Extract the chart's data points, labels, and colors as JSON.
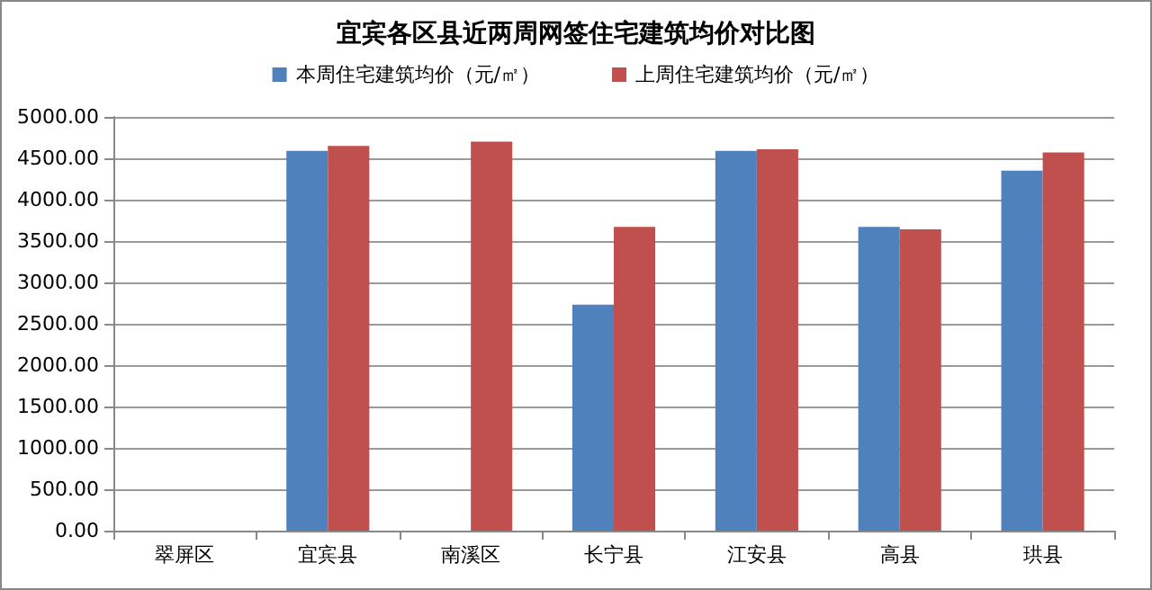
{
  "chart_data": {
    "type": "bar",
    "title": "宜宾各区县近两周网签住宅建筑均价对比图",
    "categories": [
      "翠屏区",
      "宜宾县",
      "南溪区",
      "长宁县",
      "江安县",
      "高县",
      "珙县"
    ],
    "series": [
      {
        "name": "本周住宅建筑均价（元/㎡）",
        "color": "#4f81bd",
        "values": [
          null,
          4590,
          null,
          2730,
          4590,
          3670,
          4350
        ]
      },
      {
        "name": "上周住宅建筑均价（元/㎡）",
        "color": "#c0504d",
        "values": [
          null,
          4650,
          4700,
          3670,
          4610,
          3640,
          4570
        ]
      }
    ],
    "ylim": [
      0,
      5000
    ],
    "yticks": [
      {
        "value": 0,
        "label": "0.00"
      },
      {
        "value": 500,
        "label": "500.00"
      },
      {
        "value": 1000,
        "label": "1000.00"
      },
      {
        "value": 1500,
        "label": "1500.00"
      },
      {
        "value": 2000,
        "label": "2000.00"
      },
      {
        "value": 2500,
        "label": "2500.00"
      },
      {
        "value": 3000,
        "label": "3000.00"
      },
      {
        "value": 3500,
        "label": "3500.00"
      },
      {
        "value": 4000,
        "label": "4000.00"
      },
      {
        "value": 4500,
        "label": "4500.00"
      },
      {
        "value": 5000,
        "label": "5000.00"
      }
    ],
    "grid": "y",
    "legend": "top"
  }
}
